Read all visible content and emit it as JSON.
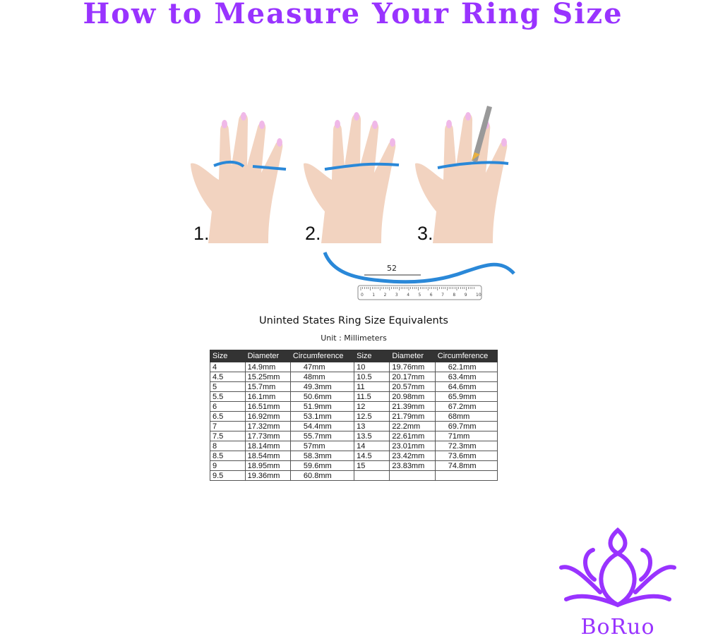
{
  "title": "How to Measure Your Ring Size",
  "steps": [
    "1.",
    "2.",
    "3."
  ],
  "ruler": {
    "measurement": "52",
    "ticks": [
      "0",
      "1",
      "2",
      "3",
      "4",
      "5",
      "6",
      "7",
      "8",
      "9",
      "10"
    ]
  },
  "colors": {
    "title": "#9933ff",
    "string": "#2a88d8",
    "skin": "#f2d3c0",
    "nail": "#f0b8e8",
    "logo": "#9933ff"
  },
  "table": {
    "title": "Uninted States Ring Size Equivalents",
    "unit": "Unit : Millimeters",
    "headers": [
      "Size",
      "Diameter",
      "Circumference",
      "Size",
      "Diameter",
      "Circumference"
    ],
    "rows": [
      [
        "4",
        "14.9mm",
        "47mm",
        "10",
        "19.76mm",
        "62.1mm"
      ],
      [
        "4.5",
        "15.25mm",
        "48mm",
        "10.5",
        "20.17mm",
        "63.4mm"
      ],
      [
        "5",
        "15.7mm",
        "49.3mm",
        "11",
        "20.57mm",
        "64.6mm"
      ],
      [
        "5.5",
        "16.1mm",
        "50.6mm",
        "11.5",
        "20.98mm",
        "65.9mm"
      ],
      [
        "6",
        "16.51mm",
        "51.9mm",
        "12",
        "21.39mm",
        "67.2mm"
      ],
      [
        "6.5",
        "16.92mm",
        "53.1mm",
        "12.5",
        "21.79mm",
        "68mm"
      ],
      [
        "7",
        "17.32mm",
        "54.4mm",
        "13",
        "22.2mm",
        "69.7mm"
      ],
      [
        "7.5",
        "17.73mm",
        "55.7mm",
        "13.5",
        "22.61mm",
        "71mm"
      ],
      [
        "8",
        "18.14mm",
        "57mm",
        "14",
        "23.01mm",
        "72.3mm"
      ],
      [
        "8.5",
        "18.54mm",
        "58.3mm",
        "14.5",
        "23.42mm",
        "73.6mm"
      ],
      [
        "9",
        "18.95mm",
        "59.6mm",
        "15",
        "23.83mm",
        "74.8mm"
      ],
      [
        "9.5",
        "19.36mm",
        "60.8mm",
        "",
        "",
        ""
      ]
    ]
  },
  "logo": {
    "text": "BoRuo"
  }
}
